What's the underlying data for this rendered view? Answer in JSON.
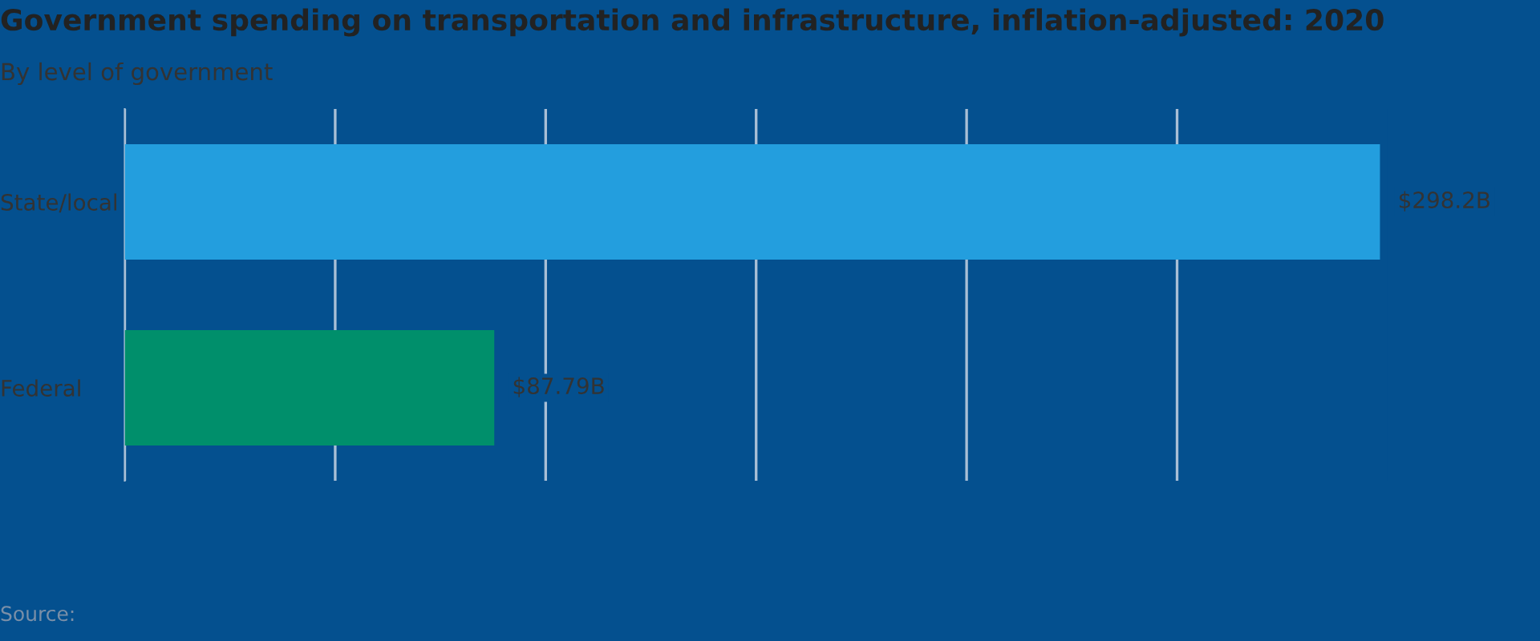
{
  "chart_data": {
    "type": "bar",
    "orientation": "horizontal",
    "title": "Government spending on transportation and infrastructure, inflation-adjusted: 2020",
    "subtitle": "By level of government",
    "categories": [
      "State/local",
      "Federal"
    ],
    "values": [
      298.2,
      87.79
    ],
    "colors": [
      "#239ede",
      "#008f6b"
    ],
    "value_labels": [
      "$298.2B",
      "$87.79B"
    ],
    "xlim": [
      0,
      300
    ],
    "xticks": [
      {
        "value": 0,
        "label": null
      },
      {
        "value": 50,
        "label": null
      },
      {
        "value": 100,
        "label": null
      },
      {
        "value": 150,
        "label": null
      },
      {
        "value": 200,
        "label": null
      },
      {
        "value": 250,
        "label": null
      }
    ],
    "grid": "x",
    "annotations": [
      "Source:"
    ]
  }
}
